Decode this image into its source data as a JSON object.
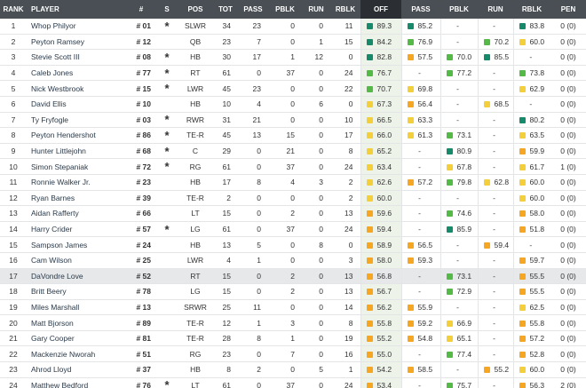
{
  "table": {
    "header": [
      "RANK",
      "PLAYER",
      "#",
      "S",
      "POS",
      "TOT",
      "PASS",
      "PBLK",
      "RUN",
      "RBLK",
      "OFF",
      "PASS",
      "PBLK",
      "RUN",
      "RBLK",
      "PEN"
    ],
    "rows": [
      [
        "1",
        "Whop Philyor",
        "# 01",
        "*",
        "SLWR",
        "34",
        "23",
        "0",
        "0",
        "11",
        "89.3",
        "85.2",
        "-",
        "-",
        "83.8",
        "0 (0)"
      ],
      [
        "2",
        "Peyton Ramsey",
        "# 12",
        null,
        "QB",
        "23",
        "7",
        "0",
        "1",
        "15",
        "84.2",
        "76.9",
        "-",
        "70.2",
        "60.0",
        "0 (0)"
      ],
      [
        "3",
        "Stevie Scott III",
        "# 08",
        "*",
        "HB",
        "30",
        "17",
        "1",
        "12",
        "0",
        "82.8",
        "57.5",
        "70.0",
        "85.5",
        "-",
        "0 (0)"
      ],
      [
        "4",
        "Caleb Jones",
        "# 77",
        "*",
        "RT",
        "61",
        "0",
        "37",
        "0",
        "24",
        "76.7",
        "-",
        "77.2",
        "-",
        "73.8",
        "0 (0)"
      ],
      [
        "5",
        "Nick Westbrook",
        "# 15",
        "*",
        "LWR",
        "45",
        "23",
        "0",
        "0",
        "22",
        "70.7",
        "69.8",
        "-",
        "-",
        "62.9",
        "0 (0)"
      ],
      [
        "6",
        "David Ellis",
        "# 10",
        null,
        "HB",
        "10",
        "4",
        "0",
        "6",
        "0",
        "67.3",
        "56.4",
        "-",
        "68.5",
        "-",
        "0 (0)"
      ],
      [
        "7",
        "Ty Fryfogle",
        "# 03",
        "*",
        "RWR",
        "31",
        "21",
        "0",
        "0",
        "10",
        "66.5",
        "63.3",
        "-",
        "-",
        "80.2",
        "0 (0)"
      ],
      [
        "8",
        "Peyton Hendershot",
        "# 86",
        "*",
        "TE-R",
        "45",
        "13",
        "15",
        "0",
        "17",
        "66.0",
        "61.3",
        "73.1",
        "-",
        "63.5",
        "0 (0)"
      ],
      [
        "9",
        "Hunter Littlejohn",
        "# 68",
        "*",
        "C",
        "29",
        "0",
        "21",
        "0",
        "8",
        "65.2",
        "-",
        "80.9",
        "-",
        "59.9",
        "0 (0)"
      ],
      [
        "10",
        "Simon Stepaniak",
        "# 72",
        "*",
        "RG",
        "61",
        "0",
        "37",
        "0",
        "24",
        "63.4",
        "-",
        "67.8",
        "-",
        "61.7",
        "1 (0)"
      ],
      [
        "11",
        "Ronnie Walker Jr.",
        "# 23",
        null,
        "HB",
        "17",
        "8",
        "4",
        "3",
        "2",
        "62.6",
        "57.2",
        "79.8",
        "62.8",
        "60.0",
        "0 (0)"
      ],
      [
        "12",
        "Ryan Barnes",
        "# 39",
        null,
        "TE-R",
        "2",
        "0",
        "0",
        "0",
        "2",
        "60.0",
        "-",
        "-",
        "-",
        "60.0",
        "0 (0)"
      ],
      [
        "13",
        "Aidan Rafferty",
        "# 66",
        null,
        "LT",
        "15",
        "0",
        "2",
        "0",
        "13",
        "59.6",
        "-",
        "74.6",
        "-",
        "58.0",
        "0 (0)"
      ],
      [
        "14",
        "Harry Crider",
        "# 57",
        "*",
        "LG",
        "61",
        "0",
        "37",
        "0",
        "24",
        "59.4",
        "-",
        "85.9",
        "-",
        "51.8",
        "0 (0)"
      ],
      [
        "15",
        "Sampson James",
        "# 24",
        null,
        "HB",
        "13",
        "5",
        "0",
        "8",
        "0",
        "58.9",
        "56.5",
        "-",
        "59.4",
        "-",
        "0 (0)"
      ],
      [
        "16",
        "Cam Wilson",
        "# 25",
        null,
        "LWR",
        "4",
        "1",
        "0",
        "0",
        "3",
        "58.0",
        "59.3",
        "-",
        "-",
        "59.7",
        "0 (0)"
      ],
      [
        "17",
        "DaVondre Love",
        "# 52",
        null,
        "RT",
        "15",
        "0",
        "2",
        "0",
        "13",
        "56.8",
        "-",
        "73.1",
        "-",
        "55.5",
        "0 (0)"
      ],
      [
        "18",
        "Britt Beery",
        "# 78",
        null,
        "LG",
        "15",
        "0",
        "2",
        "0",
        "13",
        "56.7",
        "-",
        "72.9",
        "-",
        "55.5",
        "0 (0)"
      ],
      [
        "19",
        "Miles Marshall",
        "# 13",
        null,
        "SRWR",
        "25",
        "11",
        "0",
        "0",
        "14",
        "56.2",
        "55.9",
        "-",
        "-",
        "62.5",
        "0 (0)"
      ],
      [
        "20",
        "Matt Bjorson",
        "# 89",
        null,
        "TE-R",
        "12",
        "1",
        "3",
        "0",
        "8",
        "55.8",
        "59.2",
        "66.9",
        "-",
        "55.8",
        "0 (0)"
      ],
      [
        "21",
        "Gary Cooper",
        "# 81",
        null,
        "TE-R",
        "28",
        "8",
        "1",
        "0",
        "19",
        "55.2",
        "54.8",
        "65.1",
        "-",
        "57.2",
        "0 (0)"
      ],
      [
        "22",
        "Mackenzie Nworah",
        "# 51",
        null,
        "RG",
        "23",
        "0",
        "7",
        "0",
        "16",
        "55.0",
        "-",
        "77.4",
        "-",
        "52.8",
        "0 (0)"
      ],
      [
        "23",
        "Ahrod Lloyd",
        "# 37",
        null,
        "HB",
        "8",
        "2",
        "0",
        "5",
        "1",
        "54.2",
        "58.5",
        "-",
        "55.2",
        "60.0",
        "0 (0)"
      ],
      [
        "24",
        "Matthew Bedford",
        "# 76",
        "*",
        "LT",
        "61",
        "0",
        "37",
        "0",
        "24",
        "53.4",
        "-",
        "75.7",
        "-",
        "56.3",
        "2 (0)"
      ]
    ]
  }
}
